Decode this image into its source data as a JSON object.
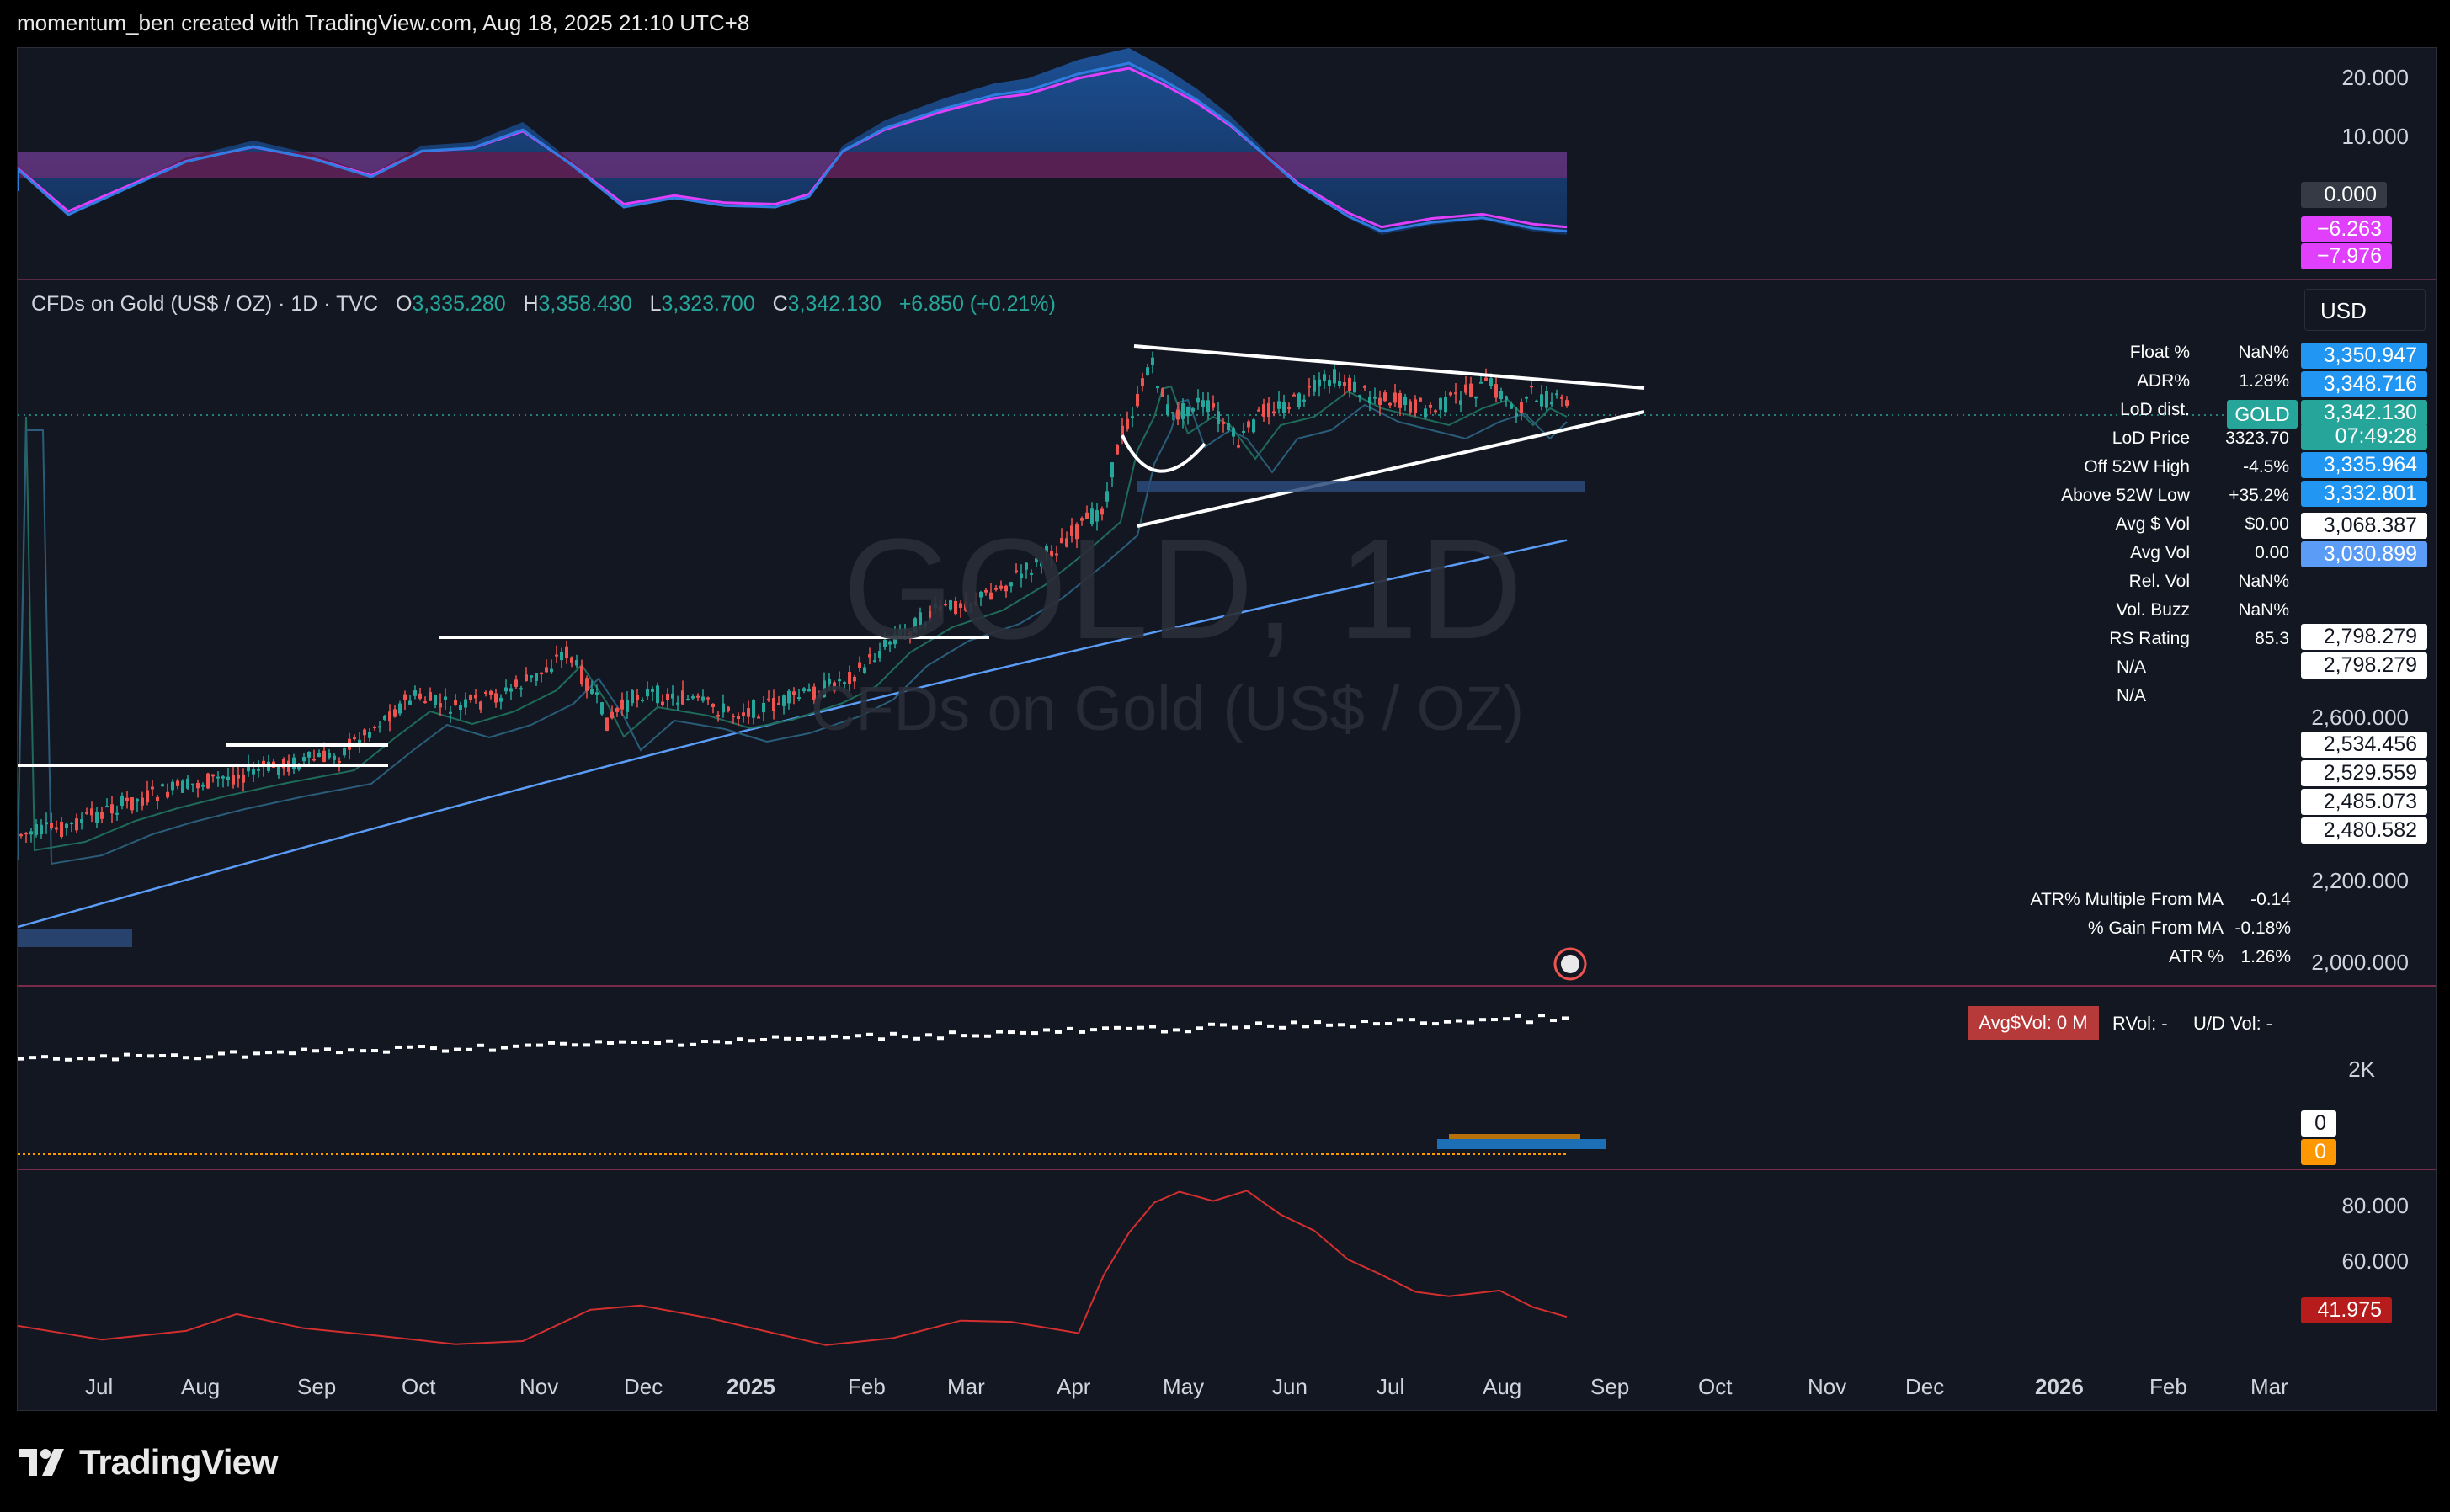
{
  "header": {
    "attribution": "momentum_ben created with TradingView.com, Aug 18, 2025 21:10 UTC+8"
  },
  "legend": {
    "symbol": "CFDs on Gold (US$ / OZ) · 1D · TVC",
    "o_label": "O",
    "o": "3,335.280",
    "h_label": "H",
    "h": "3,358.430",
    "l_label": "L",
    "l": "3,323.700",
    "c_label": "C",
    "c": "3,342.130",
    "change": "+6.850 (+0.21%)"
  },
  "watermark": {
    "ticker": "GOLD, 1D",
    "name": "CFDs on Gold (US$ / OZ)"
  },
  "currency_button": "USD",
  "top_pane": {
    "axis_labels": [
      "20.000",
      "10.000"
    ],
    "zero_tag": "0.000",
    "value_tags": [
      "−6.263",
      "−7.976"
    ]
  },
  "price_pane": {
    "axis_labels": [
      "2,600.000",
      "2,200.000",
      "2,000.000"
    ],
    "price_tags": [
      {
        "value": "3,350.947",
        "style": "blue"
      },
      {
        "value": "3,348.716",
        "style": "blue"
      },
      {
        "value": "3,342.130",
        "style": "green"
      },
      {
        "value": "07:49:28",
        "style": "green"
      },
      {
        "value": "3,335.964",
        "style": "blue"
      },
      {
        "value": "3,332.801",
        "style": "blue"
      },
      {
        "value": "3,068.387",
        "style": "white"
      },
      {
        "value": "3,030.899",
        "style": "lblue"
      },
      {
        "value": "2,798.279",
        "style": "white"
      },
      {
        "value": "2,798.279",
        "style": "white"
      },
      {
        "value": "2,534.456",
        "style": "white"
      },
      {
        "value": "2,529.559",
        "style": "white"
      },
      {
        "value": "2,485.073",
        "style": "white"
      },
      {
        "value": "2,480.582",
        "style": "white"
      }
    ],
    "symbol_tag": "GOLD",
    "stats": [
      {
        "label": "Float %",
        "value": "NaN%"
      },
      {
        "label": "ADR%",
        "value": "1.28%"
      },
      {
        "label": "LoD dist.",
        "value": ""
      },
      {
        "label": "LoD Price",
        "value": "3323.70"
      },
      {
        "label": "Off 52W High",
        "value": "-4.5%"
      },
      {
        "label": "Above 52W Low",
        "value": "+35.2%"
      },
      {
        "label": "Avg $ Vol",
        "value": "$0.00"
      },
      {
        "label": "Avg Vol",
        "value": "0.00"
      },
      {
        "label": "Rel. Vol",
        "value": "NaN%"
      },
      {
        "label": "Vol. Buzz",
        "value": "NaN%"
      },
      {
        "label": "RS Rating",
        "value": "85.3"
      },
      {
        "label": "",
        "value": "N/A"
      },
      {
        "label": "",
        "value": "N/A"
      }
    ],
    "lower_stats": [
      {
        "label": "ATR% Multiple From MA",
        "value": "-0.14"
      },
      {
        "label": "% Gain From MA",
        "value": "-0.18%"
      },
      {
        "label": "ATR %",
        "value": "1.26%"
      }
    ]
  },
  "volume_pane": {
    "badge": "Avg$Vol: 0 M",
    "rvol": "RVol: -",
    "ud": "U/D Vol: -",
    "axis_label": "2K",
    "tags": [
      "0",
      "0"
    ]
  },
  "rs_pane": {
    "axis_labels": [
      "80.000",
      "60.000"
    ],
    "value_tag": "41.975"
  },
  "x_axis": [
    {
      "label": "Jul",
      "bold": false
    },
    {
      "label": "Aug",
      "bold": false
    },
    {
      "label": "Sep",
      "bold": false
    },
    {
      "label": "Oct",
      "bold": false
    },
    {
      "label": "Nov",
      "bold": false
    },
    {
      "label": "Dec",
      "bold": false
    },
    {
      "label": "2025",
      "bold": true
    },
    {
      "label": "Feb",
      "bold": false
    },
    {
      "label": "Mar",
      "bold": false
    },
    {
      "label": "Apr",
      "bold": false
    },
    {
      "label": "May",
      "bold": false
    },
    {
      "label": "Jun",
      "bold": false
    },
    {
      "label": "Jul",
      "bold": false
    },
    {
      "label": "Aug",
      "bold": false
    },
    {
      "label": "Sep",
      "bold": false
    },
    {
      "label": "Oct",
      "bold": false
    },
    {
      "label": "Nov",
      "bold": false
    },
    {
      "label": "Dec",
      "bold": false
    },
    {
      "label": "2026",
      "bold": true
    },
    {
      "label": "Feb",
      "bold": false
    },
    {
      "label": "Mar",
      "bold": false
    }
  ],
  "footer": {
    "brand": "TradingView"
  },
  "colors": {
    "bg": "#131722",
    "up": "#26a69a",
    "down": "#ef5350",
    "accent": "#2196f3",
    "magenta": "#e040fb"
  }
}
